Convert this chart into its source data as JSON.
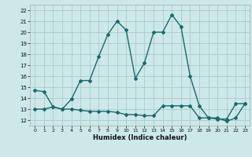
{
  "xlabel": "Humidex (Indice chaleur)",
  "bg_color": "#cce8e8",
  "grid_color": "#aacccc",
  "line_color": "#1a6b6b",
  "markersize": 2.0,
  "linewidth": 1.0,
  "xlim": [
    -0.5,
    23.5
  ],
  "ylim": [
    11.5,
    22.5
  ],
  "xticks": [
    0,
    1,
    2,
    3,
    4,
    5,
    6,
    7,
    8,
    9,
    10,
    11,
    12,
    13,
    14,
    15,
    16,
    17,
    18,
    19,
    20,
    21,
    22,
    23
  ],
  "yticks": [
    12,
    13,
    14,
    15,
    16,
    17,
    18,
    19,
    20,
    21,
    22
  ],
  "line1_x": [
    0,
    1,
    2,
    3,
    4,
    5,
    6,
    7,
    8,
    9,
    10,
    11,
    12,
    13,
    14,
    15,
    16,
    17,
    18,
    19,
    20,
    21,
    22,
    23
  ],
  "line1_y": [
    14.7,
    14.6,
    13.2,
    13.0,
    13.9,
    15.6,
    15.6,
    17.8,
    19.8,
    21.0,
    20.2,
    15.8,
    17.2,
    20.0,
    20.0,
    21.6,
    20.5,
    16.0,
    13.3,
    12.2,
    12.2,
    11.9,
    12.2,
    13.5
  ],
  "line2_x": [
    0,
    1,
    2,
    3,
    4,
    5,
    6,
    7,
    8,
    9,
    10,
    11,
    12,
    13,
    14,
    15,
    16,
    17,
    18,
    19,
    20,
    21,
    22,
    23
  ],
  "line2_y": [
    13.0,
    13.0,
    13.2,
    13.0,
    13.0,
    12.9,
    12.8,
    12.8,
    12.8,
    12.7,
    12.5,
    12.5,
    12.4,
    12.4,
    13.3,
    13.3,
    13.3,
    13.3,
    12.2,
    12.2,
    12.1,
    12.1,
    13.5,
    13.5
  ]
}
